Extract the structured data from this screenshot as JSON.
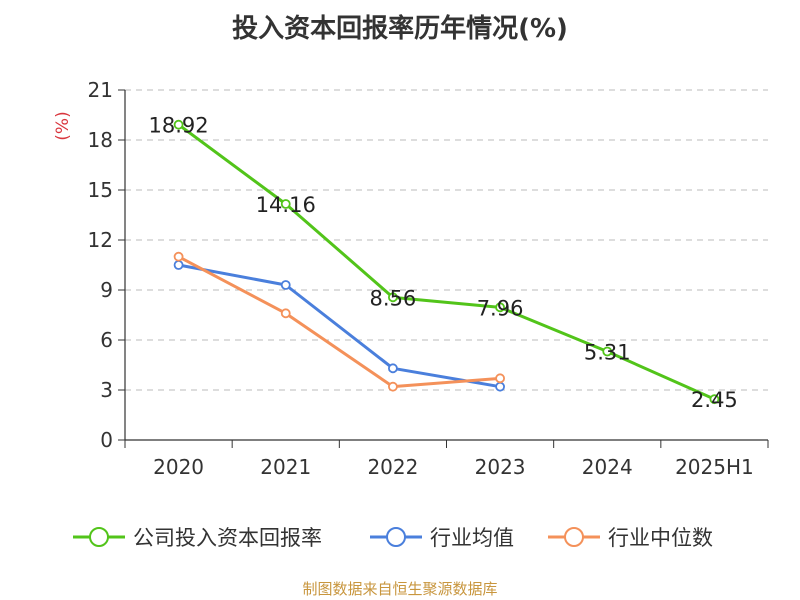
{
  "chart_data": {
    "type": "line",
    "title": "投入资本回报率历年情况(%)",
    "ylabel": "(%)",
    "xlabel": "",
    "categories": [
      "2020",
      "2021",
      "2022",
      "2023",
      "2024",
      "2025H1"
    ],
    "yticks": [
      "0",
      "3",
      "6",
      "9",
      "12",
      "15",
      "18",
      "21"
    ],
    "ylim": [
      0,
      21
    ],
    "grid": true,
    "legend_position": "bottom",
    "series": [
      {
        "name": "公司投入资本回报率",
        "color": "#52c41a",
        "values": [
          18.92,
          14.16,
          8.56,
          7.96,
          5.31,
          2.45
        ],
        "labels": [
          "18.92",
          "14.16",
          "8.56",
          "7.96",
          "5.31",
          "2.45"
        ]
      },
      {
        "name": "行业均值",
        "color": "#4a7fdc",
        "values": [
          10.5,
          9.3,
          4.3,
          3.2,
          null,
          null
        ]
      },
      {
        "name": "行业中位数",
        "color": "#f4915a",
        "values": [
          11.0,
          7.6,
          3.2,
          3.7,
          null,
          null
        ]
      }
    ]
  },
  "colors": {
    "title": "#333333",
    "axis": "#333333",
    "grid": "#bbbbbb",
    "ylabel": "#d9363e",
    "source": "#c8963e"
  },
  "source": "制图数据来自恒生聚源数据库"
}
